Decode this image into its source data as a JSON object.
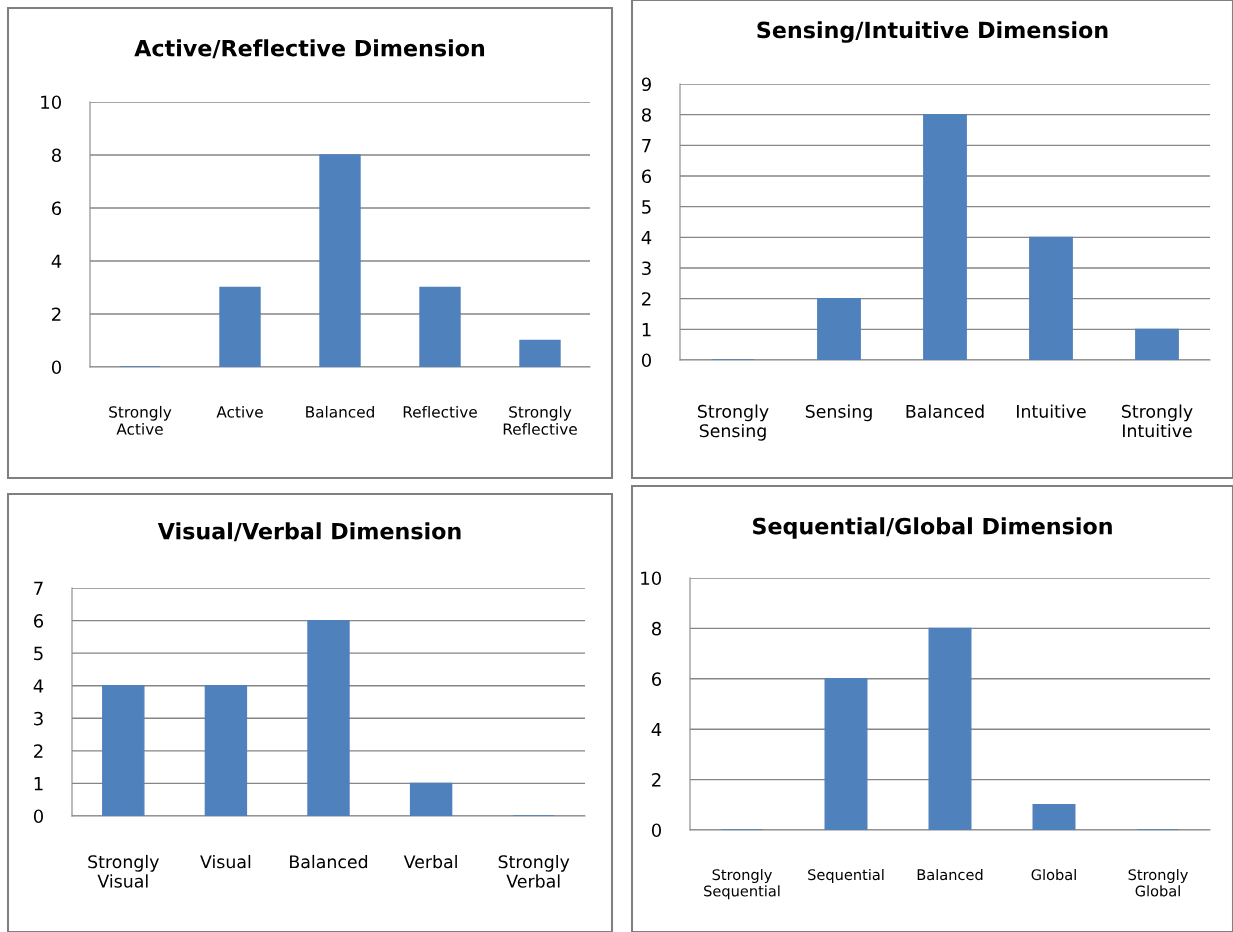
{
  "chart_data": [
    {
      "type": "bar",
      "title": "Active/Reflective Dimension",
      "categories": [
        "Strongly\nActive",
        "Active",
        "Balanced",
        "Reflective",
        "Strongly\nReflective"
      ],
      "values": [
        0,
        3,
        8,
        3,
        1
      ],
      "color": "#4f81bd",
      "ylim": [
        0,
        10
      ],
      "yticks": [
        0,
        2,
        4,
        6,
        8,
        10
      ],
      "grid": "y"
    },
    {
      "type": "bar",
      "title": "Sensing/Intuitive Dimension",
      "categories": [
        "Strongly\nSensing",
        "Sensing",
        "Balanced",
        "Intuitive",
        "Strongly\nIntuitive"
      ],
      "values": [
        0,
        2,
        8,
        4,
        1
      ],
      "color": "#4f81bd",
      "ylim": [
        0,
        9
      ],
      "yticks": [
        0,
        1,
        2,
        3,
        4,
        5,
        6,
        7,
        8,
        9
      ],
      "grid": "y"
    },
    {
      "type": "bar",
      "title": "Visual/Verbal Dimension",
      "categories": [
        "Strongly\nVisual",
        "Visual",
        "Balanced",
        "Verbal",
        "Strongly\nVerbal"
      ],
      "values": [
        4,
        4,
        6,
        1,
        0
      ],
      "color": "#4f81bd",
      "ylim": [
        0,
        7
      ],
      "yticks": [
        0,
        1,
        2,
        3,
        4,
        5,
        6,
        7
      ],
      "grid": "y"
    },
    {
      "type": "bar",
      "title": "Sequential/Global Dimension",
      "categories": [
        "Strongly\nSequential",
        "Sequential",
        "Balanced",
        "Global",
        "Strongly\nGlobal"
      ],
      "values": [
        0,
        6,
        8,
        1,
        0
      ],
      "color": "#4f81bd",
      "ylim": [
        0,
        10
      ],
      "yticks": [
        0,
        2,
        4,
        6,
        8,
        10
      ],
      "grid": "y"
    }
  ]
}
